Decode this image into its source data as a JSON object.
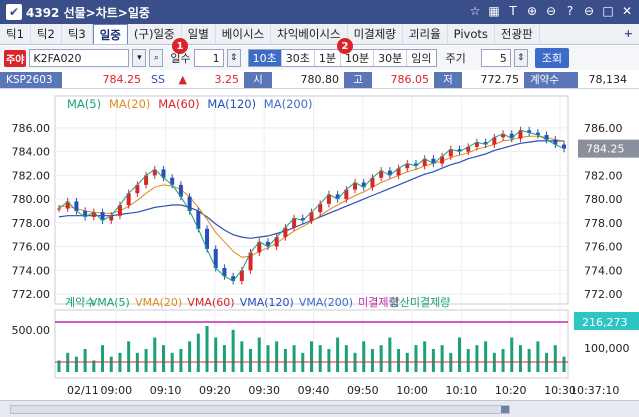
{
  "window": {
    "title": "4392 선물>차트>일중"
  },
  "tabs": [
    {
      "label": "틱1"
    },
    {
      "label": "틱2"
    },
    {
      "label": "틱3"
    },
    {
      "label": "일중"
    },
    {
      "label": "(구)일중"
    },
    {
      "label": "일별"
    },
    {
      "label": "베이시스"
    },
    {
      "label": "차익베이시스"
    },
    {
      "label": "미결제량"
    },
    {
      "label": "괴리율"
    },
    {
      "label": "Pivots"
    },
    {
      "label": "전광판"
    }
  ],
  "toolbar": {
    "badge": "주야",
    "code": "K2FA020",
    "days_label": "일수",
    "days_value": "1",
    "intervals": [
      "10초",
      "30초",
      "1분",
      "10분",
      "30분",
      "임의"
    ],
    "period_label": "주기",
    "period_value": "5",
    "query_button": "조회",
    "marker1": "1",
    "marker2": "2"
  },
  "pricebar": {
    "symbol": "KSP2603",
    "price": "784.25",
    "ss": "SS",
    "change_arrow": "▲",
    "change": "3.25",
    "open_label": "시",
    "open": "780.80",
    "high_label": "고",
    "high": "786.05",
    "low_label": "저",
    "low": "772.75",
    "contracts_label": "계약수",
    "contracts": "78,134"
  },
  "chart_data": {
    "type": "line",
    "title": "",
    "legend_top": [
      {
        "name": "MA(5)",
        "color": "#1aa07a"
      },
      {
        "name": "MA(20)",
        "color": "#e08a1a"
      },
      {
        "name": "MA(60)",
        "color": "#d9252a"
      },
      {
        "name": "MA(120)",
        "color": "#2a4fb8"
      },
      {
        "name": "MA(200)",
        "color": "#3d6cc8"
      }
    ],
    "y_ticks_left": [
      "786.00",
      "784.00",
      "782.00",
      "780.00",
      "778.00",
      "776.00",
      "774.00",
      "772.00"
    ],
    "y_ticks_right": [
      "786.00",
      "784.00",
      "782.00",
      "780.00",
      "778.00",
      "776.00",
      "774.00",
      "772.00"
    ],
    "ylim": [
      771.5,
      787
    ],
    "current_price": "784.25",
    "x_ticks": [
      "02/11",
      "09:00",
      "09:10",
      "09:20",
      "09:30",
      "09:40",
      "09:50",
      "10:00",
      "10:10",
      "10:20",
      "10:30"
    ],
    "x_last": "10:37:10",
    "price": [
      779.2,
      779.8,
      779.0,
      778.5,
      778.9,
      778.2,
      778.6,
      779.5,
      780.5,
      781.2,
      782.0,
      782.5,
      781.8,
      781.2,
      780.2,
      779.0,
      777.5,
      775.8,
      774.2,
      773.5,
      773.1,
      774.0,
      775.5,
      776.4,
      776.0,
      776.8,
      777.6,
      778.4,
      778.2,
      778.9,
      779.6,
      780.4,
      780.0,
      780.8,
      781.4,
      781.0,
      781.8,
      782.4,
      782.0,
      782.6,
      783.0,
      782.8,
      783.4,
      783.0,
      783.6,
      784.2,
      784.0,
      784.4,
      784.8,
      784.6,
      785.2,
      785.5,
      785.1,
      785.8,
      785.6,
      785.4,
      785.0,
      784.6,
      784.25
    ],
    "ma20": [
      779.4,
      779.4,
      779.2,
      779.0,
      778.9,
      778.8,
      778.8,
      779.0,
      779.4,
      779.9,
      780.5,
      781.0,
      781.2,
      781.1,
      780.8,
      780.2,
      779.3,
      778.3,
      777.2,
      776.4,
      775.6,
      775.1,
      775.2,
      775.6,
      775.9,
      776.3,
      776.8,
      777.3,
      777.7,
      778.1,
      778.6,
      779.1,
      779.5,
      779.9,
      780.3,
      780.6,
      781.0,
      781.4,
      781.7,
      782.0,
      782.3,
      782.5,
      782.8,
      783.0,
      783.2,
      783.5,
      783.7,
      783.9,
      784.2,
      784.4,
      784.6,
      784.9,
      785.0,
      785.2,
      785.3,
      785.3,
      785.2,
      785.0,
      784.9
    ],
    "ma120": [
      778.5,
      778.6,
      778.6,
      778.6,
      778.6,
      778.6,
      778.6,
      778.7,
      778.8,
      778.9,
      779.1,
      779.3,
      779.4,
      779.5,
      779.5,
      779.3,
      779.0,
      778.5,
      777.9,
      777.4,
      777.0,
      776.8,
      776.7,
      776.8,
      776.9,
      777.1,
      777.3,
      777.6,
      777.9,
      778.2,
      778.5,
      778.8,
      779.1,
      779.4,
      779.7,
      780.0,
      780.3,
      780.6,
      780.9,
      781.2,
      781.5,
      781.8,
      782.1,
      782.3,
      782.6,
      782.9,
      783.1,
      783.4,
      783.6,
      783.8,
      784.1,
      784.3,
      784.5,
      784.7,
      784.8,
      784.9,
      784.9,
      784.9,
      784.9
    ],
    "legend_volume": [
      {
        "name": "계약수",
        "color": "#1aa07a"
      },
      {
        "name": "VMA(5)",
        "color": "#1aa07a"
      },
      {
        "name": "VMA(20)",
        "color": "#e08a1a"
      },
      {
        "name": "VMA(60)",
        "color": "#d9252a"
      },
      {
        "name": "VMA(120)",
        "color": "#2a4fb8"
      },
      {
        "name": "VMA(200)",
        "color": "#3d6cc8"
      },
      {
        "name": "미결제량",
        "color": "#c02aa8"
      },
      {
        "name": "합산미결제량",
        "color": "#1aa07a"
      }
    ],
    "volume_y_left": "500.00",
    "volume_y_right": "100,000",
    "volume_current": "216,273",
    "volume": [
      3,
      5,
      4,
      6,
      3,
      7,
      4,
      5,
      8,
      5,
      6,
      9,
      7,
      5,
      6,
      8,
      10,
      12,
      9,
      7,
      11,
      8,
      6,
      9,
      7,
      8,
      6,
      7,
      5,
      8,
      7,
      6,
      9,
      7,
      5,
      8,
      6,
      7,
      9,
      6,
      5,
      7,
      8,
      6,
      7,
      5,
      9,
      6,
      7,
      8,
      5,
      6,
      9,
      7,
      6,
      8,
      5,
      7,
      4
    ]
  },
  "colors": {
    "titlebar": "#3a4f8a",
    "accent": "#3d6cc8",
    "price_up": "#d9252a"
  }
}
